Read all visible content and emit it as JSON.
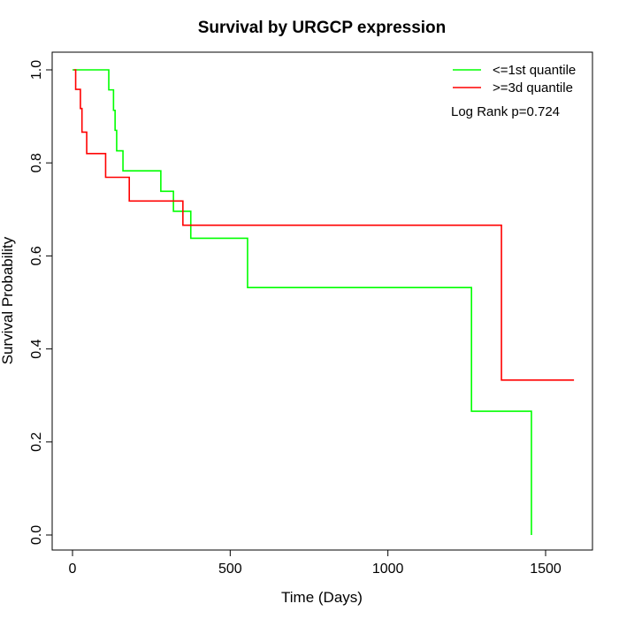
{
  "chart_data": {
    "type": "line",
    "subtype": "step",
    "title": "Survival by URGCP expression",
    "xlabel": "Time (Days)",
    "ylabel": "Survival Probability",
    "xlim": [
      0,
      1600
    ],
    "ylim": [
      0,
      1.0
    ],
    "xticks": [
      0,
      500,
      1000,
      1500
    ],
    "yticks": [
      0.0,
      0.2,
      0.4,
      0.6,
      0.8,
      1.0
    ],
    "ytick_labels": [
      "0.0",
      "0.2",
      "0.4",
      "0.6",
      "0.8",
      "1.0"
    ],
    "grid": false,
    "legend_position": "top-right",
    "annotation": "Log Rank p=0.724",
    "series": [
      {
        "name": "<=1st quantile",
        "color": "#00ff00",
        "x": [
          0,
          115,
          130,
          135,
          140,
          150,
          160,
          280,
          320,
          375,
          555,
          1265,
          1455
        ],
        "y": [
          1.0,
          0.957,
          0.913,
          0.87,
          0.826,
          0.826,
          0.783,
          0.739,
          0.696,
          0.638,
          0.532,
          0.266,
          0.0
        ]
      },
      {
        "name": ">=3d quantile",
        "color": "#ff0000",
        "x": [
          5,
          10,
          25,
          30,
          45,
          105,
          180,
          350,
          1360,
          1590
        ],
        "y": [
          1.0,
          0.958,
          0.917,
          0.866,
          0.82,
          0.769,
          0.718,
          0.666,
          0.333,
          0.333
        ]
      }
    ]
  }
}
